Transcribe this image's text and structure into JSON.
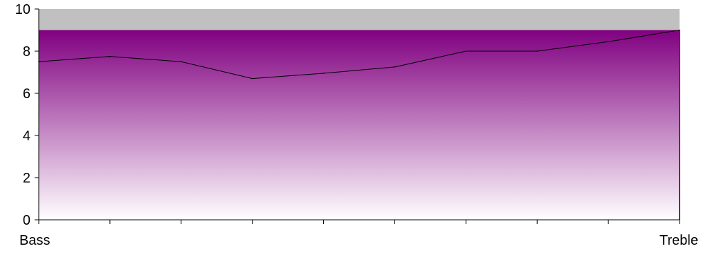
{
  "chart_data": {
    "type": "area",
    "title": "",
    "xlabel": "",
    "ylabel": "",
    "ylim": [
      0,
      10
    ],
    "yticks": [
      0,
      2,
      4,
      6,
      8,
      10
    ],
    "x_points": 10,
    "x_end_labels": [
      "Bass",
      "Treble"
    ],
    "grid": false,
    "legend": "none",
    "series": [
      {
        "values": [
          7.5,
          7.75,
          7.5,
          6.7,
          6.95,
          7.25,
          8.0,
          8.0,
          8.45,
          9.0
        ]
      }
    ],
    "band": {
      "min": 0,
      "max": 9
    },
    "colors": {
      "plot_background": "#c0c0c0",
      "fill_top": "#800080",
      "fill_bottom": "#ffffff",
      "line": "#000000",
      "axis": "#000000"
    }
  }
}
